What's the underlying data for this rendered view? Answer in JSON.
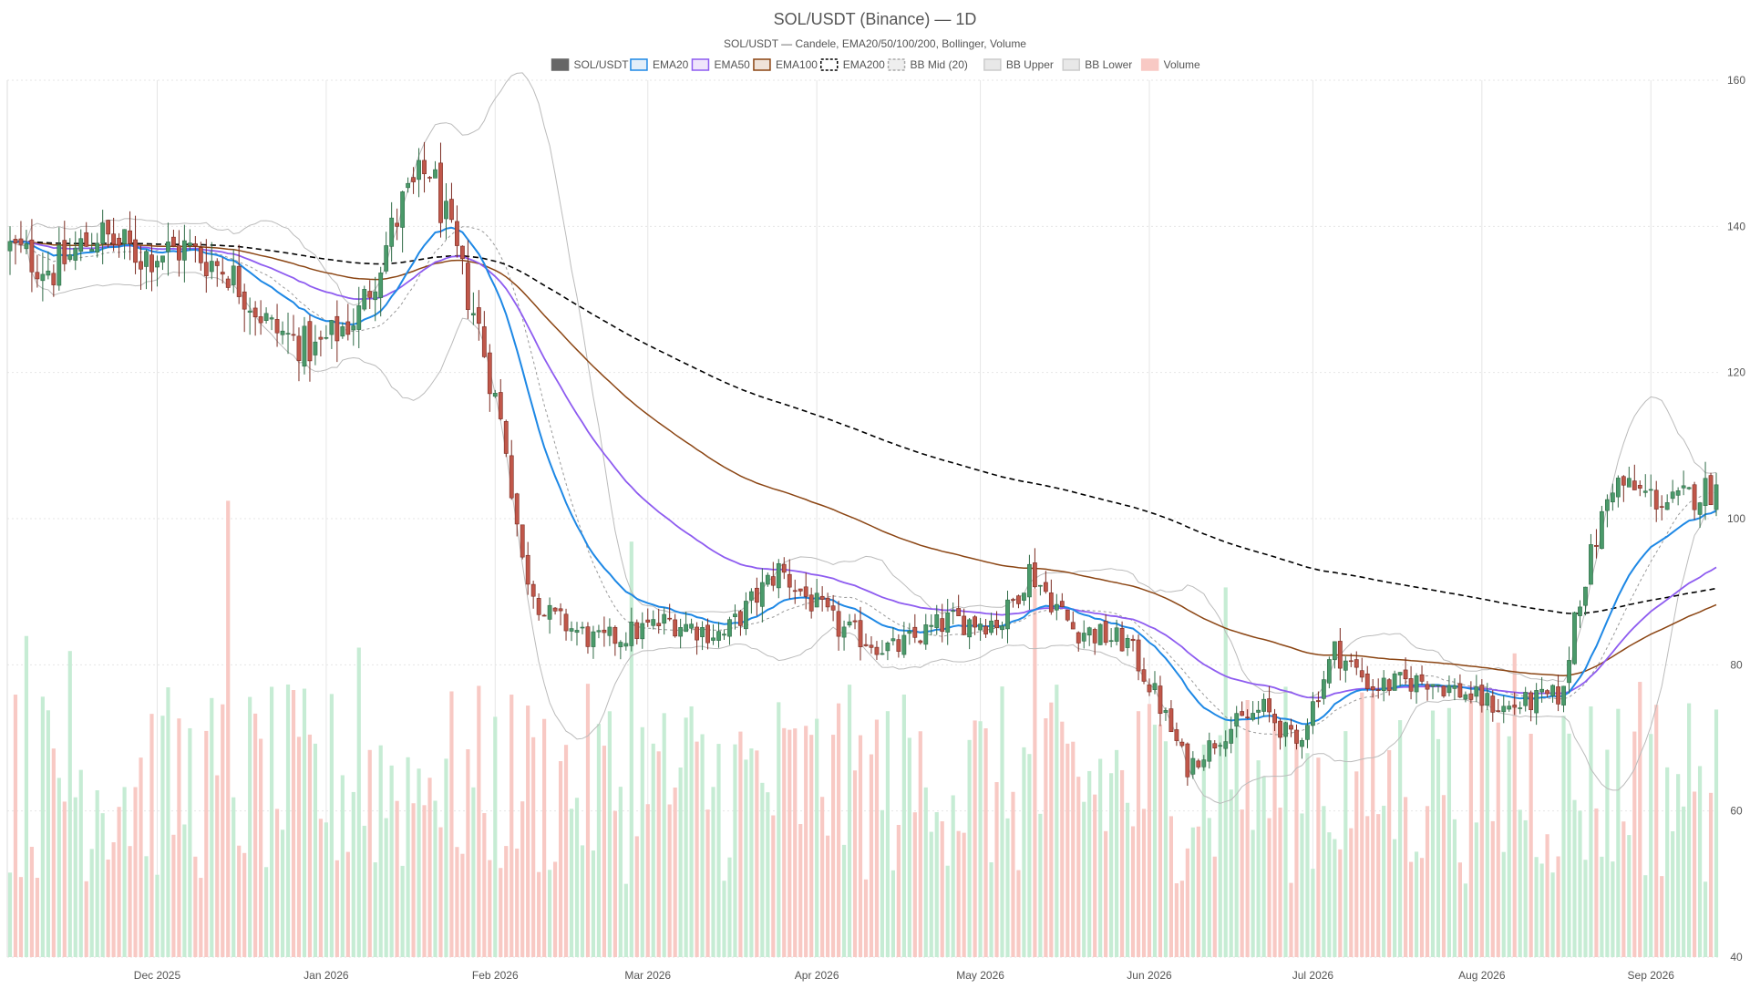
{
  "chart_data": {
    "type": "candlestick",
    "title": "SOL/USDT (Binance) — 1D",
    "subtitle": "SOL/USDT — Candele, EMA20/50/100/200, Bollinger, Volume",
    "legend": [
      {
        "name": "SOL/USDT",
        "swatch": "#666666",
        "border": "#666666",
        "dash": false
      },
      {
        "name": "EMA20",
        "swatch": "#e3eef9",
        "border": "#1e88e5",
        "dash": false
      },
      {
        "name": "EMA50",
        "swatch": "#efe5fb",
        "border": "#8e5cf0",
        "dash": false
      },
      {
        "name": "EMA100",
        "swatch": "#efe3da",
        "border": "#8b4513",
        "dash": false
      },
      {
        "name": "EMA200",
        "swatch": "#ffffff",
        "border": "#000000",
        "dash": true
      },
      {
        "name": "BB Mid (20)",
        "swatch": "#eeeeee",
        "border": "#aaaaaa",
        "dash": true
      },
      {
        "name": "BB Upper",
        "swatch": "#e8e8e8",
        "border": "#cccccc",
        "dash": false
      },
      {
        "name": "BB Lower",
        "swatch": "#e8e8e8",
        "border": "#cccccc",
        "dash": false
      },
      {
        "name": "Volume",
        "swatch": "#f8c9c4",
        "border": "#f8c9c4",
        "dash": false
      }
    ],
    "y_axis": {
      "min": 40,
      "max": 160,
      "ticks": [
        40,
        60,
        80,
        100,
        120,
        140,
        160
      ],
      "position": "right"
    },
    "x_axis": {
      "start": "2025-11-04",
      "end": "2026-09-13",
      "ticks": [
        {
          "date": "2025-12-01",
          "label": "Dec 2025"
        },
        {
          "date": "2026-01-01",
          "label": "Jan 2026"
        },
        {
          "date": "2026-02-01",
          "label": "Feb 2026"
        },
        {
          "date": "2026-03-01",
          "label": "Mar 2026"
        },
        {
          "date": "2026-04-01",
          "label": "Apr 2026"
        },
        {
          "date": "2026-05-01",
          "label": "May 2026"
        },
        {
          "date": "2026-06-01",
          "label": "Jun 2026"
        },
        {
          "date": "2026-07-01",
          "label": "Jul 2026"
        },
        {
          "date": "2026-08-01",
          "label": "Aug 2026"
        },
        {
          "date": "2026-09-01",
          "label": "Sep 2026"
        }
      ]
    },
    "colors": {
      "up": "#4a9a6a",
      "up_border": "#2f6b46",
      "down": "#c0574a",
      "down_border": "#7a2a20",
      "vol_up": "#c6ecd4",
      "vol_down": "#f8c9c4",
      "grid": "#e6e6e6"
    },
    "close_anchors": [
      [
        "2025-11-04",
        137
      ],
      [
        "2025-11-12",
        134
      ],
      [
        "2025-11-20",
        139
      ],
      [
        "2025-11-28",
        136
      ],
      [
        "2025-12-06",
        137
      ],
      [
        "2025-12-14",
        134
      ],
      [
        "2025-12-22",
        126
      ],
      [
        "2025-12-30",
        123
      ],
      [
        "2026-01-07",
        128
      ],
      [
        "2026-01-15",
        143
      ],
      [
        "2026-01-20",
        148
      ],
      [
        "2026-01-24",
        138
      ],
      [
        "2026-01-29",
        126
      ],
      [
        "2026-02-03",
        110
      ],
      [
        "2026-02-06",
        94
      ],
      [
        "2026-02-10",
        87
      ],
      [
        "2026-02-20",
        83
      ],
      [
        "2026-03-05",
        86
      ],
      [
        "2026-03-15",
        84
      ],
      [
        "2026-03-25",
        93
      ],
      [
        "2026-04-05",
        85
      ],
      [
        "2026-04-15",
        82
      ],
      [
        "2026-04-25",
        86
      ],
      [
        "2026-05-05",
        86
      ],
      [
        "2026-05-10",
        93
      ],
      [
        "2026-05-18",
        85
      ],
      [
        "2026-05-28",
        83
      ],
      [
        "2026-06-02",
        76
      ],
      [
        "2026-06-08",
        66
      ],
      [
        "2026-06-15",
        71
      ],
      [
        "2026-06-22",
        74
      ],
      [
        "2026-06-28",
        69
      ],
      [
        "2026-07-05",
        82
      ],
      [
        "2026-07-12",
        77
      ],
      [
        "2026-07-22",
        78
      ],
      [
        "2026-08-05",
        74
      ],
      [
        "2026-08-16",
        76
      ],
      [
        "2026-08-18",
        87
      ],
      [
        "2026-08-25",
        105
      ],
      [
        "2026-09-01",
        103
      ],
      [
        "2026-09-05",
        102
      ],
      [
        "2026-09-11",
        104
      ]
    ]
  }
}
